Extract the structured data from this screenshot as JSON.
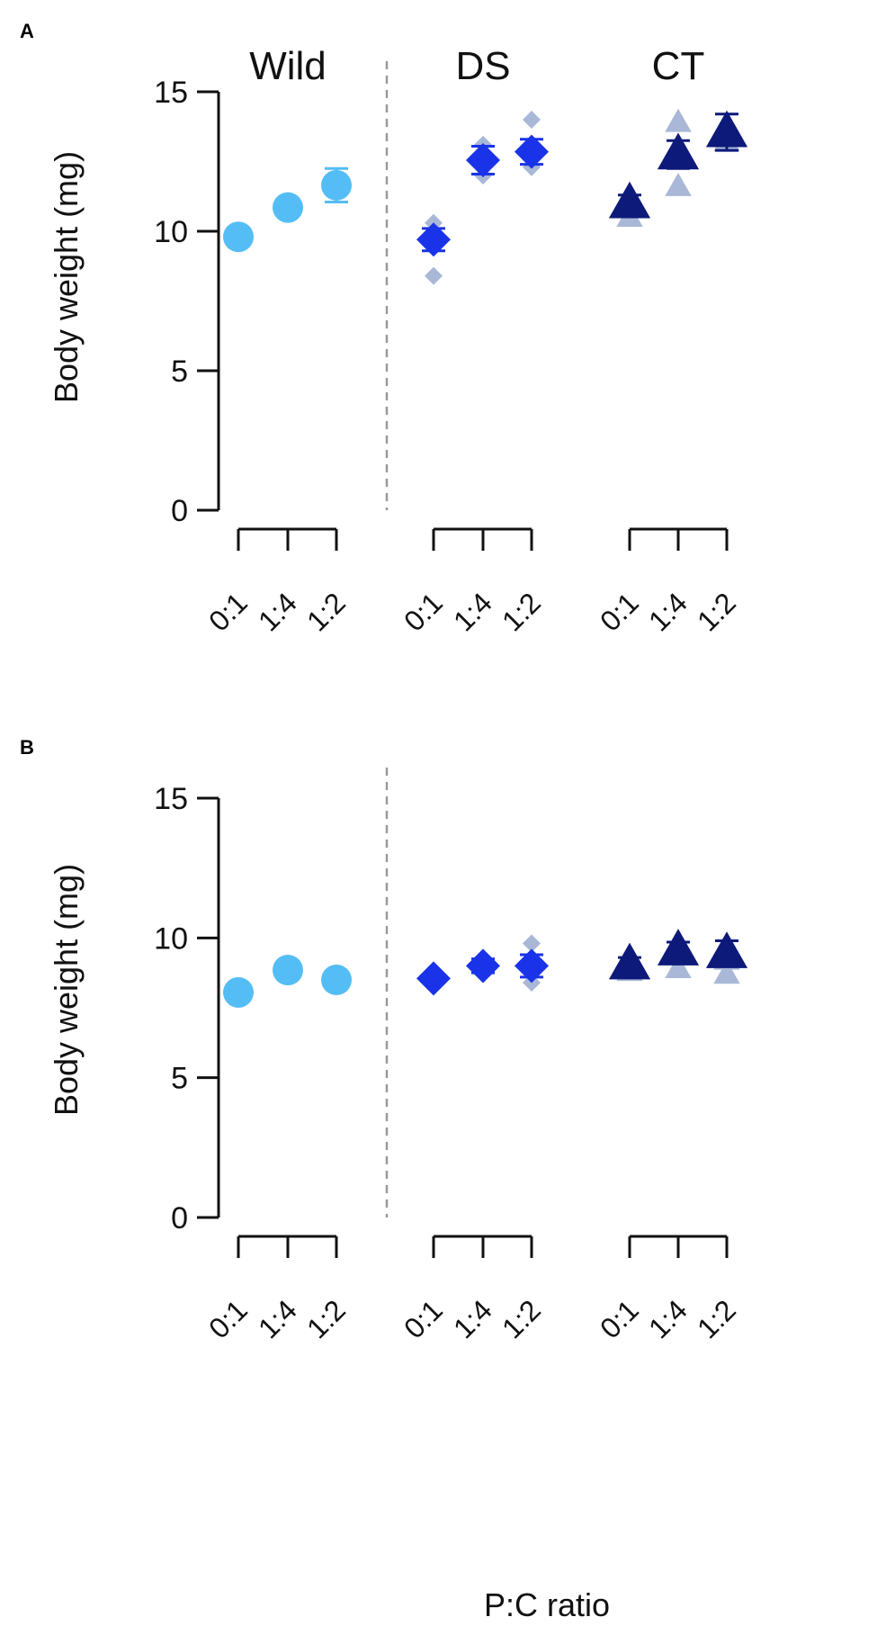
{
  "chart_data": [
    {
      "panel": "A",
      "type": "scatter",
      "ylabel": "Body weight (mg)",
      "xlabel": "",
      "ylim": [
        0,
        15
      ],
      "yticks": [
        0,
        5,
        10,
        15
      ],
      "group_labels": [
        "Wild",
        "DS",
        "CT"
      ],
      "categories": [
        "0:1",
        "1:4",
        "1:2"
      ],
      "series": [
        {
          "group": "Wild",
          "marker": "circle",
          "color": "#55bdf5",
          "means": [
            9.8,
            10.85,
            11.65
          ],
          "err": [
            0.2,
            0.25,
            0.6
          ],
          "replicates": [
            [],
            [],
            []
          ]
        },
        {
          "group": "DS",
          "marker": "diamond",
          "color": "#1a33e8",
          "means": [
            9.7,
            12.55,
            12.85
          ],
          "err": [
            0.4,
            0.5,
            0.45
          ],
          "replicates": [
            [
              8.4,
              9.6,
              10.3
            ],
            [
              12.0,
              12.6,
              13.1
            ],
            [
              12.3,
              12.8,
              14.0
            ]
          ]
        },
        {
          "group": "CT",
          "marker": "triangle",
          "color": "#0d1a7a",
          "means": [
            11.0,
            12.75,
            13.55
          ],
          "err": [
            0.3,
            0.5,
            0.65
          ],
          "replicates": [
            [
              10.5,
              10.9,
              11.2
            ],
            [
              11.6,
              12.6,
              13.9
            ],
            [
              13.2,
              13.5,
              13.8
            ]
          ]
        }
      ],
      "grid": false
    },
    {
      "panel": "B",
      "type": "scatter",
      "ylabel": "Body weight (mg)",
      "xlabel": "P:C ratio",
      "ylim": [
        0,
        15
      ],
      "yticks": [
        0,
        5,
        10,
        15
      ],
      "group_labels": [],
      "categories": [
        "0:1",
        "1:4",
        "1:2"
      ],
      "series": [
        {
          "group": "Wild",
          "marker": "circle",
          "color": "#55bdf5",
          "means": [
            8.05,
            8.85,
            8.5
          ],
          "err": [
            0.15,
            0.15,
            0.15
          ],
          "replicates": [
            [],
            [],
            []
          ]
        },
        {
          "group": "DS",
          "marker": "diamond",
          "color": "#1a33e8",
          "means": [
            8.55,
            9.0,
            9.0
          ],
          "err": [
            0.15,
            0.25,
            0.4
          ],
          "replicates": [
            [
              8.5,
              8.6,
              8.6
            ],
            [
              8.7,
              9.0,
              9.2
            ],
            [
              8.4,
              9.0,
              9.8
            ]
          ]
        },
        {
          "group": "CT",
          "marker": "triangle",
          "color": "#0d1a7a",
          "means": [
            9.05,
            9.55,
            9.45
          ],
          "err": [
            0.25,
            0.3,
            0.45
          ],
          "replicates": [
            [
              8.8,
              9.0,
              9.1
            ],
            [
              8.9,
              9.4,
              9.7
            ],
            [
              8.7,
              9.2,
              9.6
            ]
          ]
        }
      ],
      "grid": false
    }
  ],
  "colors": {
    "replicate": "#a9b8d6",
    "divider": "#999999",
    "axis": "#111111"
  }
}
